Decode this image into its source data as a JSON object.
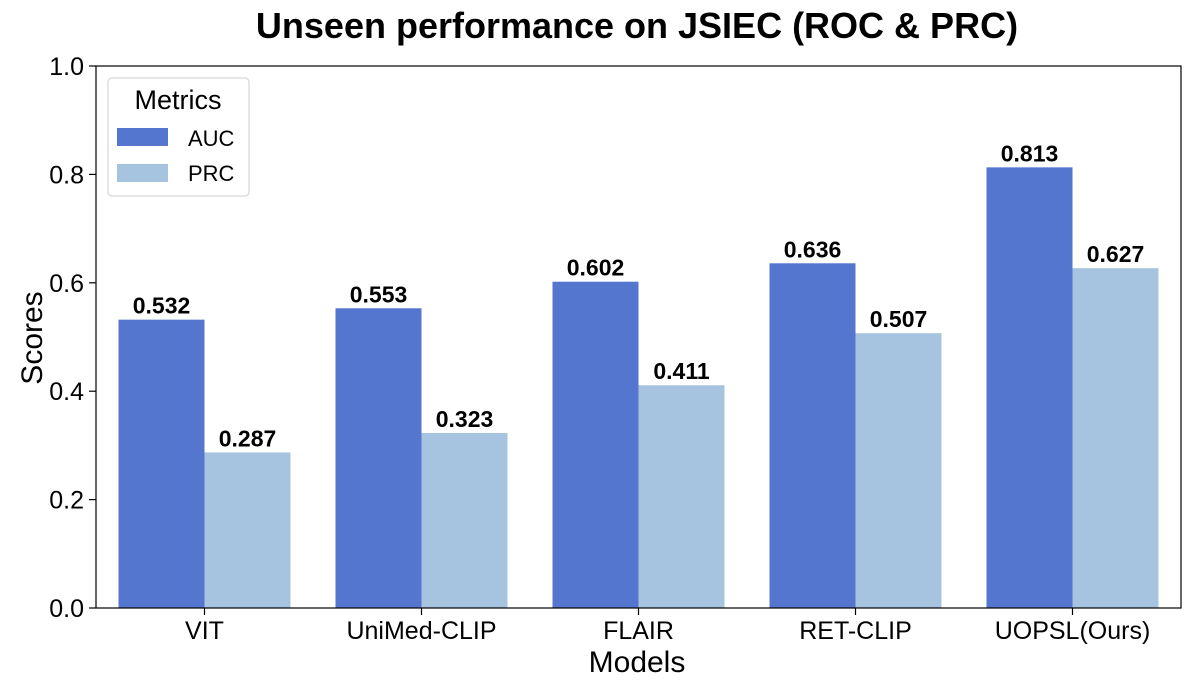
{
  "chart_data": {
    "type": "bar",
    "title": "Unseen performance on JSIEC (ROC & PRC)",
    "xlabel": "Models",
    "ylabel": "Scores",
    "categories": [
      "VIT",
      "UniMed-CLIP",
      "FLAIR",
      "RET-CLIP",
      "UOPSL(Ours)"
    ],
    "series": [
      {
        "name": "AUC",
        "values": [
          0.532,
          0.553,
          0.602,
          0.636,
          0.813
        ],
        "color": "#5576CE"
      },
      {
        "name": "PRC",
        "values": [
          0.287,
          0.323,
          0.411,
          0.507,
          0.627
        ],
        "color": "#A6C4DF"
      }
    ],
    "ylim": [
      0,
      1.0
    ],
    "yticks": [
      "0.0",
      "0.2",
      "0.4",
      "0.6",
      "0.8",
      "1.0"
    ],
    "legend": {
      "title": "Metrics",
      "placement": "top-left"
    },
    "grid": false,
    "data_labels": true
  }
}
